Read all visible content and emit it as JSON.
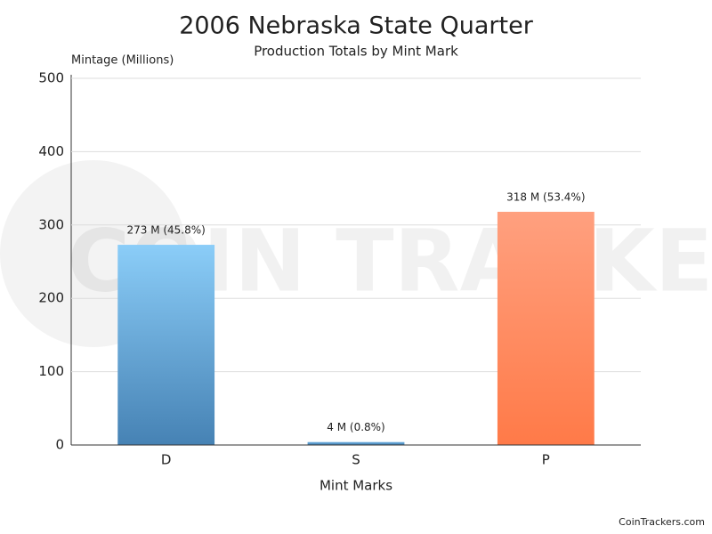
{
  "chart_data": {
    "type": "bar",
    "title": "2006 Nebraska State Quarter",
    "subtitle": "Production Totals by Mint Mark",
    "y_label": "Mintage (Millions)",
    "x_label": "Mint Marks",
    "categories": [
      "D",
      "S",
      "P"
    ],
    "values": [
      273,
      4,
      318
    ],
    "value_labels": [
      "273 M (45.8%)",
      "4 M (0.8%)",
      "318 M (53.4%)"
    ],
    "colors": [
      [
        "#8bcdf8",
        "#4682b4"
      ],
      [
        "#6aaee0",
        "#4682b4"
      ],
      [
        "#ffa07f",
        "#ff7a48"
      ]
    ],
    "ylim": [
      0,
      500
    ],
    "yticks": [
      0,
      100,
      200,
      300,
      400,
      500
    ],
    "grid": true,
    "watermark": "COIN TRACKERS",
    "credit": "CoinTrackers.com"
  }
}
